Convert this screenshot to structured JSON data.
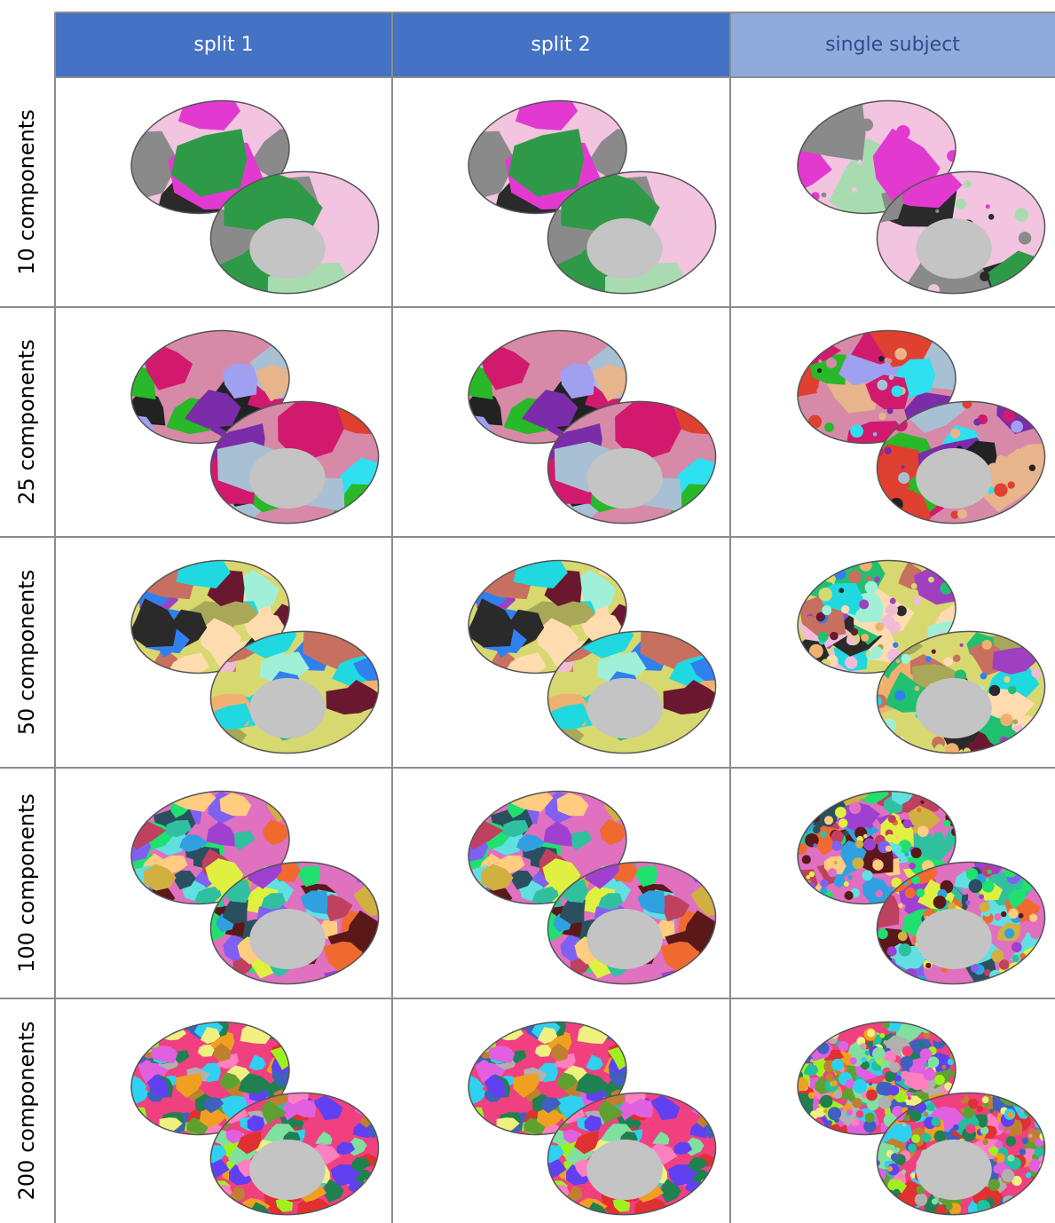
{
  "table": {
    "header": [
      "split 1",
      "split 2",
      "single subject"
    ],
    "rows": [
      "10 components",
      "25 components",
      "50 components",
      "100 components",
      "200 components"
    ]
  }
}
